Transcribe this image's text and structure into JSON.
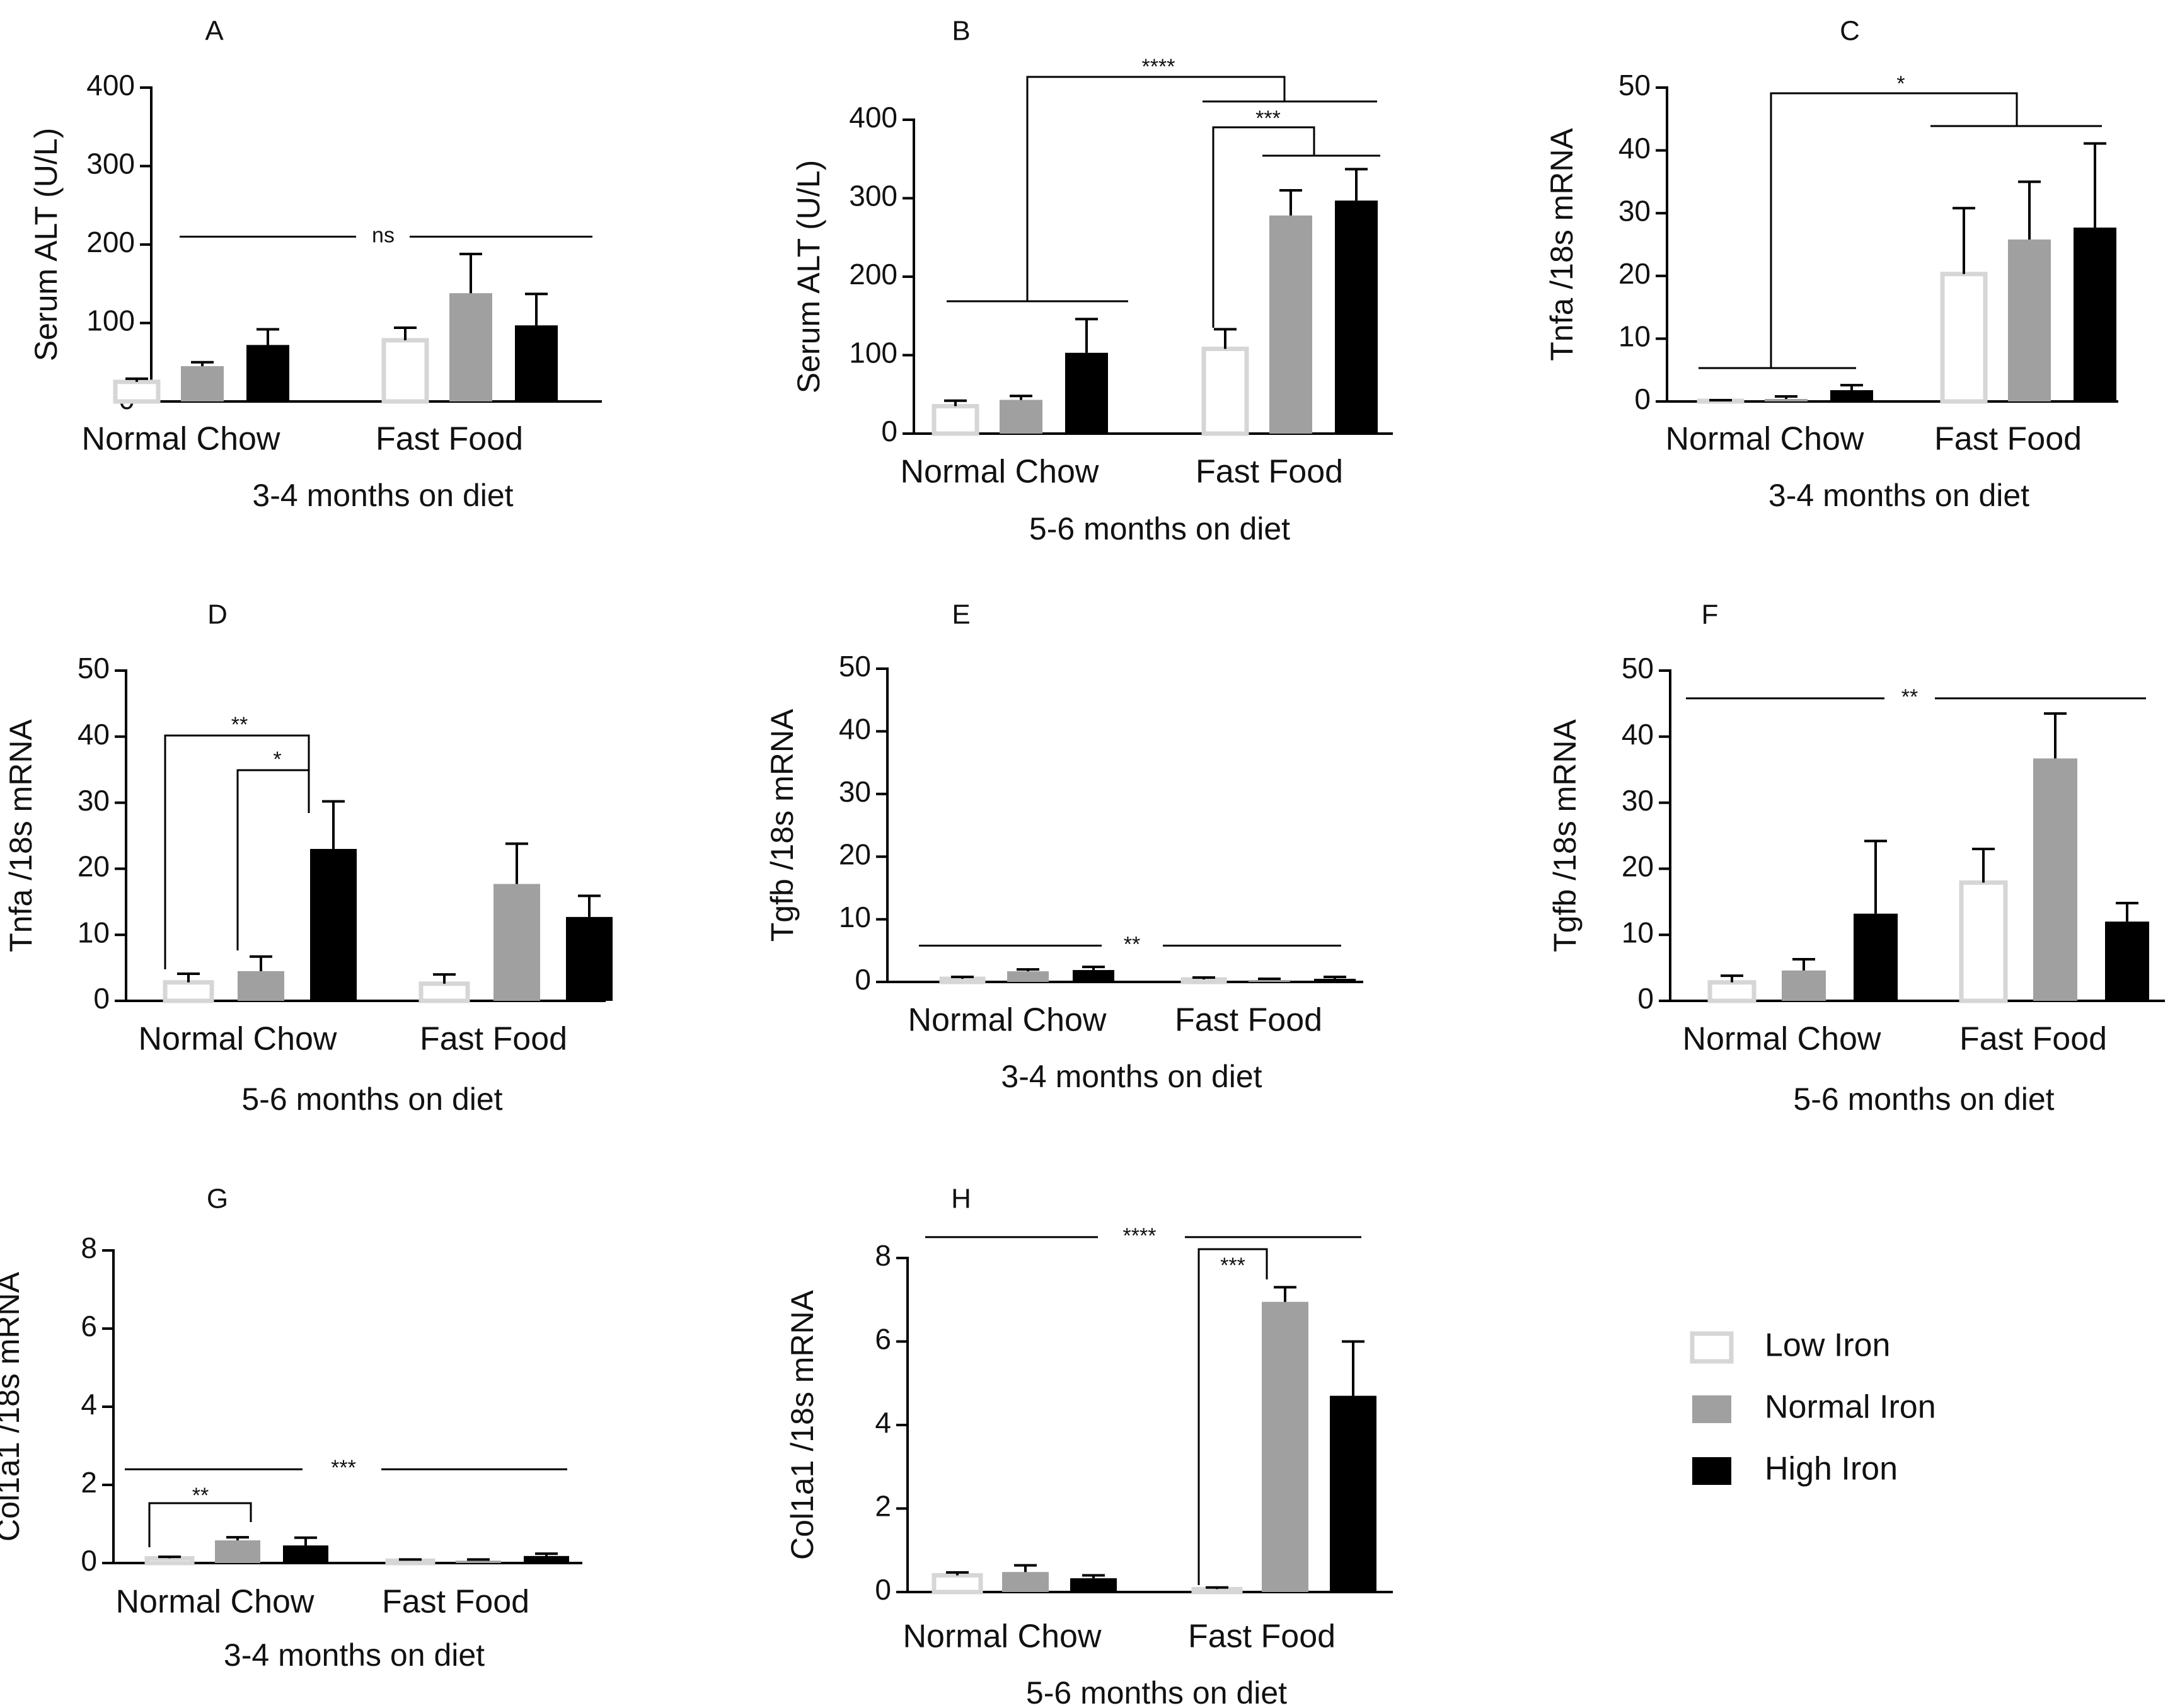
{
  "colors": {
    "low": "#ffffff",
    "low_stroke": "#d6d6d6",
    "normal": "#a0a0a0",
    "high": "#000000"
  },
  "legend": [
    {
      "key": "low",
      "label": "Low Iron"
    },
    {
      "key": "normal",
      "label": "Normal Iron"
    },
    {
      "key": "high",
      "label": "High Iron"
    }
  ],
  "chart_data": [
    {
      "type": "bar",
      "id": "A",
      "title": "A",
      "ylabel": "Serum ALT (U/L)",
      "xlabel": "3-4 months on diet",
      "ylim": [
        0,
        400
      ],
      "yticks": [
        0,
        100,
        200,
        300,
        400
      ],
      "categories": [
        "Normal Chow",
        "Fast Food"
      ],
      "series": [
        {
          "name": "Low Iron",
          "key": "low",
          "values": [
            25,
            78
          ],
          "errors": [
            4,
            16
          ]
        },
        {
          "name": "Normal Iron",
          "key": "normal",
          "values": [
            45,
            138
          ],
          "errors": [
            5,
            50
          ]
        },
        {
          "name": "High Iron",
          "key": "high",
          "values": [
            72,
            97
          ],
          "errors": [
            20,
            40
          ]
        }
      ],
      "annotations": [
        {
          "type": "line",
          "y": 210,
          "label": "ns"
        }
      ]
    },
    {
      "type": "bar",
      "id": "B",
      "title": "B",
      "ylabel": "Serum ALT (U/L)",
      "xlabel": "5-6 months on diet",
      "ylim": [
        0,
        400
      ],
      "yticks": [
        0,
        100,
        200,
        300,
        400
      ],
      "categories": [
        "Normal Chow",
        "Fast Food"
      ],
      "series": [
        {
          "name": "Low Iron",
          "key": "low",
          "values": [
            35,
            108
          ],
          "errors": [
            7,
            25
          ]
        },
        {
          "name": "Normal Iron",
          "key": "normal",
          "values": [
            43,
            278
          ],
          "errors": [
            5,
            32
          ]
        },
        {
          "name": "High Iron",
          "key": "high",
          "values": [
            103,
            297
          ],
          "errors": [
            43,
            40
          ]
        }
      ],
      "annotations": [
        {
          "type": "bracket",
          "label": "****"
        },
        {
          "type": "bracket",
          "label": "***"
        }
      ]
    },
    {
      "type": "bar",
      "id": "C",
      "title": "C",
      "ylabel": "Tnfa /18s mRNA",
      "xlabel": "3-4 months on diet",
      "ylim": [
        0,
        50
      ],
      "yticks": [
        0,
        10,
        20,
        30,
        40,
        50
      ],
      "categories": [
        "Normal Chow",
        "Fast Food"
      ],
      "series": [
        {
          "name": "Low Iron",
          "key": "low",
          "values": [
            0.1,
            20.3
          ],
          "errors": [
            0.1,
            10.5
          ]
        },
        {
          "name": "Normal Iron",
          "key": "normal",
          "values": [
            0.4,
            25.8
          ],
          "errors": [
            0.4,
            9.2
          ]
        },
        {
          "name": "High Iron",
          "key": "high",
          "values": [
            1.8,
            27.7
          ],
          "errors": [
            0.8,
            13.4
          ]
        }
      ],
      "annotations": [
        {
          "type": "bracket",
          "label": "*"
        }
      ]
    },
    {
      "type": "bar",
      "id": "D",
      "title": "D",
      "ylabel": "Tnfa /18s mRNA",
      "xlabel": "5-6 months on diet",
      "ylim": [
        0,
        50
      ],
      "yticks": [
        0,
        10,
        20,
        30,
        40,
        50
      ],
      "categories": [
        "Normal Chow",
        "Fast Food"
      ],
      "series": [
        {
          "name": "Low Iron",
          "key": "low",
          "values": [
            2.8,
            2.6
          ],
          "errors": [
            1.3,
            1.4
          ]
        },
        {
          "name": "Normal Iron",
          "key": "normal",
          "values": [
            4.5,
            17.7
          ],
          "errors": [
            2.2,
            6.1
          ]
        },
        {
          "name": "High Iron",
          "key": "high",
          "values": [
            23,
            12.7
          ],
          "errors": [
            7.2,
            3.2
          ]
        }
      ],
      "annotations": [
        {
          "type": "bracket",
          "label": "**"
        },
        {
          "type": "bracket",
          "label": "*"
        }
      ]
    },
    {
      "type": "bar",
      "id": "E",
      "title": "E",
      "ylabel": "Tgfb /18s mRNA",
      "xlabel": "3-4 months on diet",
      "ylim": [
        0,
        50
      ],
      "yticks": [
        0,
        10,
        20,
        30,
        40,
        50
      ],
      "categories": [
        "Normal Chow",
        "Fast Food"
      ],
      "series": [
        {
          "name": "Low Iron",
          "key": "low",
          "values": [
            0.5,
            0.4
          ],
          "errors": [
            0.3,
            0.3
          ]
        },
        {
          "name": "Normal Iron",
          "key": "normal",
          "values": [
            1.7,
            0.3
          ],
          "errors": [
            0.3,
            0.2
          ]
        },
        {
          "name": "High Iron",
          "key": "high",
          "values": [
            1.9,
            0.5
          ],
          "errors": [
            0.5,
            0.3
          ]
        }
      ],
      "annotations": [
        {
          "type": "line",
          "y": 5.8,
          "label": "**"
        }
      ]
    },
    {
      "type": "bar",
      "id": "F",
      "title": "F",
      "ylabel": "Tgfb /18s mRNA",
      "xlabel": "5-6 months on diet",
      "ylim": [
        0,
        50
      ],
      "yticks": [
        0,
        10,
        20,
        30,
        40,
        50
      ],
      "categories": [
        "Normal Chow",
        "Fast Food"
      ],
      "series": [
        {
          "name": "Low Iron",
          "key": "low",
          "values": [
            2.8,
            17.9
          ],
          "errors": [
            1,
            5.1
          ]
        },
        {
          "name": "Normal Iron",
          "key": "normal",
          "values": [
            4.6,
            36.7
          ],
          "errors": [
            1.7,
            6.8
          ]
        },
        {
          "name": "High Iron",
          "key": "high",
          "values": [
            13.2,
            12
          ],
          "errors": [
            11,
            2.8
          ]
        }
      ],
      "annotations": [
        {
          "type": "line",
          "y": 45.8,
          "label": "**"
        }
      ]
    },
    {
      "type": "bar",
      "id": "G",
      "title": "G",
      "ylabel": "Col1a1 /18s mRNA",
      "xlabel": "3-4 months on diet",
      "ylim": [
        0,
        8
      ],
      "yticks": [
        0,
        2,
        4,
        6,
        8
      ],
      "categories": [
        "Normal Chow",
        "Fast Food"
      ],
      "series": [
        {
          "name": "Low Iron",
          "key": "low",
          "values": [
            0.12,
            0.06
          ],
          "errors": [
            0.04,
            0.03
          ]
        },
        {
          "name": "Normal Iron",
          "key": "normal",
          "values": [
            0.58,
            0.06
          ],
          "errors": [
            0.08,
            0.03
          ]
        },
        {
          "name": "High Iron",
          "key": "high",
          "values": [
            0.45,
            0.18
          ],
          "errors": [
            0.2,
            0.06
          ]
        }
      ],
      "annotations": [
        {
          "type": "line",
          "y": 2.4,
          "label": "***"
        },
        {
          "type": "bracket",
          "label": "**"
        }
      ]
    },
    {
      "type": "bar",
      "id": "H",
      "title": "H",
      "ylabel": "Col1a1 /18s mRNA",
      "xlabel": "5-6 months on diet",
      "ylim": [
        0,
        8
      ],
      "yticks": [
        0,
        2,
        4,
        6,
        8
      ],
      "categories": [
        "Normal Chow",
        "Fast Food"
      ],
      "series": [
        {
          "name": "Low Iron",
          "key": "low",
          "values": [
            0.4,
            0.07
          ],
          "errors": [
            0.07,
            0.04
          ]
        },
        {
          "name": "Normal Iron",
          "key": "normal",
          "values": [
            0.48,
            6.95
          ],
          "errors": [
            0.16,
            0.35
          ]
        },
        {
          "name": "High Iron",
          "key": "high",
          "values": [
            0.33,
            4.7
          ],
          "errors": [
            0.07,
            1.3
          ]
        }
      ],
      "annotations": [
        {
          "type": "line",
          "y": 8.5,
          "label": "****"
        },
        {
          "type": "bracket",
          "label": "***"
        }
      ]
    }
  ]
}
